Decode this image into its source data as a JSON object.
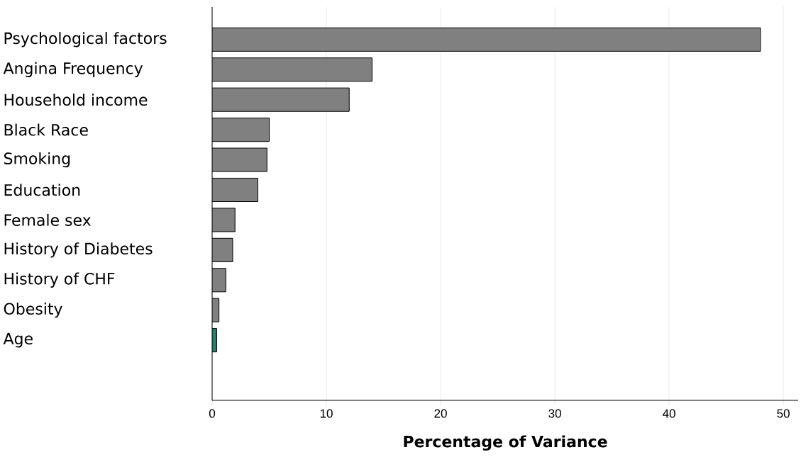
{
  "chart_data": {
    "type": "bar",
    "orientation": "horizontal",
    "xlabel": "Percentage of Variance",
    "categories": [
      "Psychological factors",
      "Angina Frequency",
      "Household income",
      "Black Race",
      "Smoking",
      "Education",
      "Female sex",
      "History of Diabetes",
      "History of CHF",
      "Obesity",
      "Age"
    ],
    "values": [
      48,
      14,
      12,
      5.0,
      4.8,
      4.0,
      2.0,
      1.8,
      1.2,
      0.6,
      0.4
    ],
    "colors": [
      "#808080",
      "#808080",
      "#808080",
      "#808080",
      "#808080",
      "#808080",
      "#808080",
      "#808080",
      "#808080",
      "#808080",
      "#2a7d68"
    ],
    "xlim": [
      0,
      51.3
    ],
    "xticks": [
      0,
      10,
      20,
      30,
      40,
      50
    ],
    "grid": "x"
  }
}
